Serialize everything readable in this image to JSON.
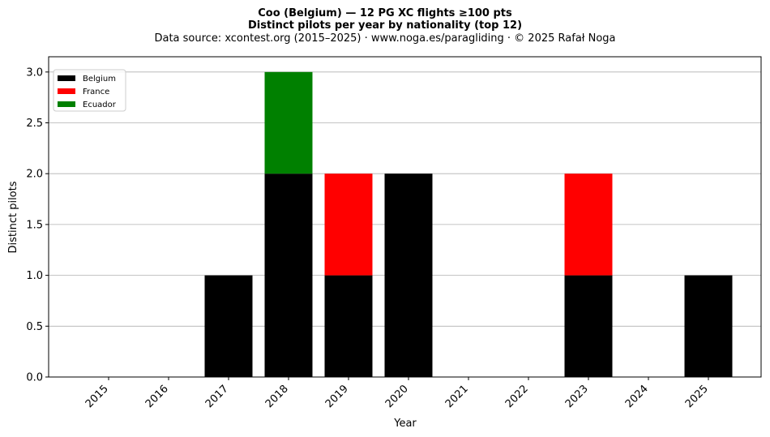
{
  "chart_data": {
    "type": "bar",
    "stacked": true,
    "title": "Coo (Belgium)  —  12 PG XC flights ≥100 pts",
    "subtitle": "Distinct pilots per year by nationality (top 12)",
    "source": "Data source: xcontest.org (2015–2025)  ·  www.noga.es/paragliding  ·  © 2025 Rafał Noga",
    "xlabel": "Year",
    "ylabel": "Distinct pilots",
    "ylim": [
      0,
      3.15
    ],
    "yticks": [
      0,
      0.5,
      1.0,
      1.5,
      2.0,
      2.5,
      3.0
    ],
    "ytick_labels": [
      "0.0",
      "0.5",
      "1.0",
      "1.5",
      "2.0",
      "2.5",
      "3.0"
    ],
    "categories": [
      "2015",
      "2016",
      "2017",
      "2018",
      "2019",
      "2020",
      "2021",
      "2022",
      "2023",
      "2024",
      "2025"
    ],
    "series": [
      {
        "name": "Belgium",
        "color": "#000000",
        "values": [
          0,
          0,
          1,
          2,
          1,
          2,
          0,
          0,
          1,
          0,
          1
        ]
      },
      {
        "name": "France",
        "color": "#ff0000",
        "values": [
          0,
          0,
          0,
          0,
          1,
          0,
          0,
          0,
          1,
          0,
          0
        ]
      },
      {
        "name": "Ecuador",
        "color": "#008000",
        "values": [
          0,
          0,
          0,
          1,
          0,
          0,
          0,
          0,
          0,
          0,
          0
        ]
      }
    ],
    "grid": "y",
    "legend_position": "top-left"
  }
}
